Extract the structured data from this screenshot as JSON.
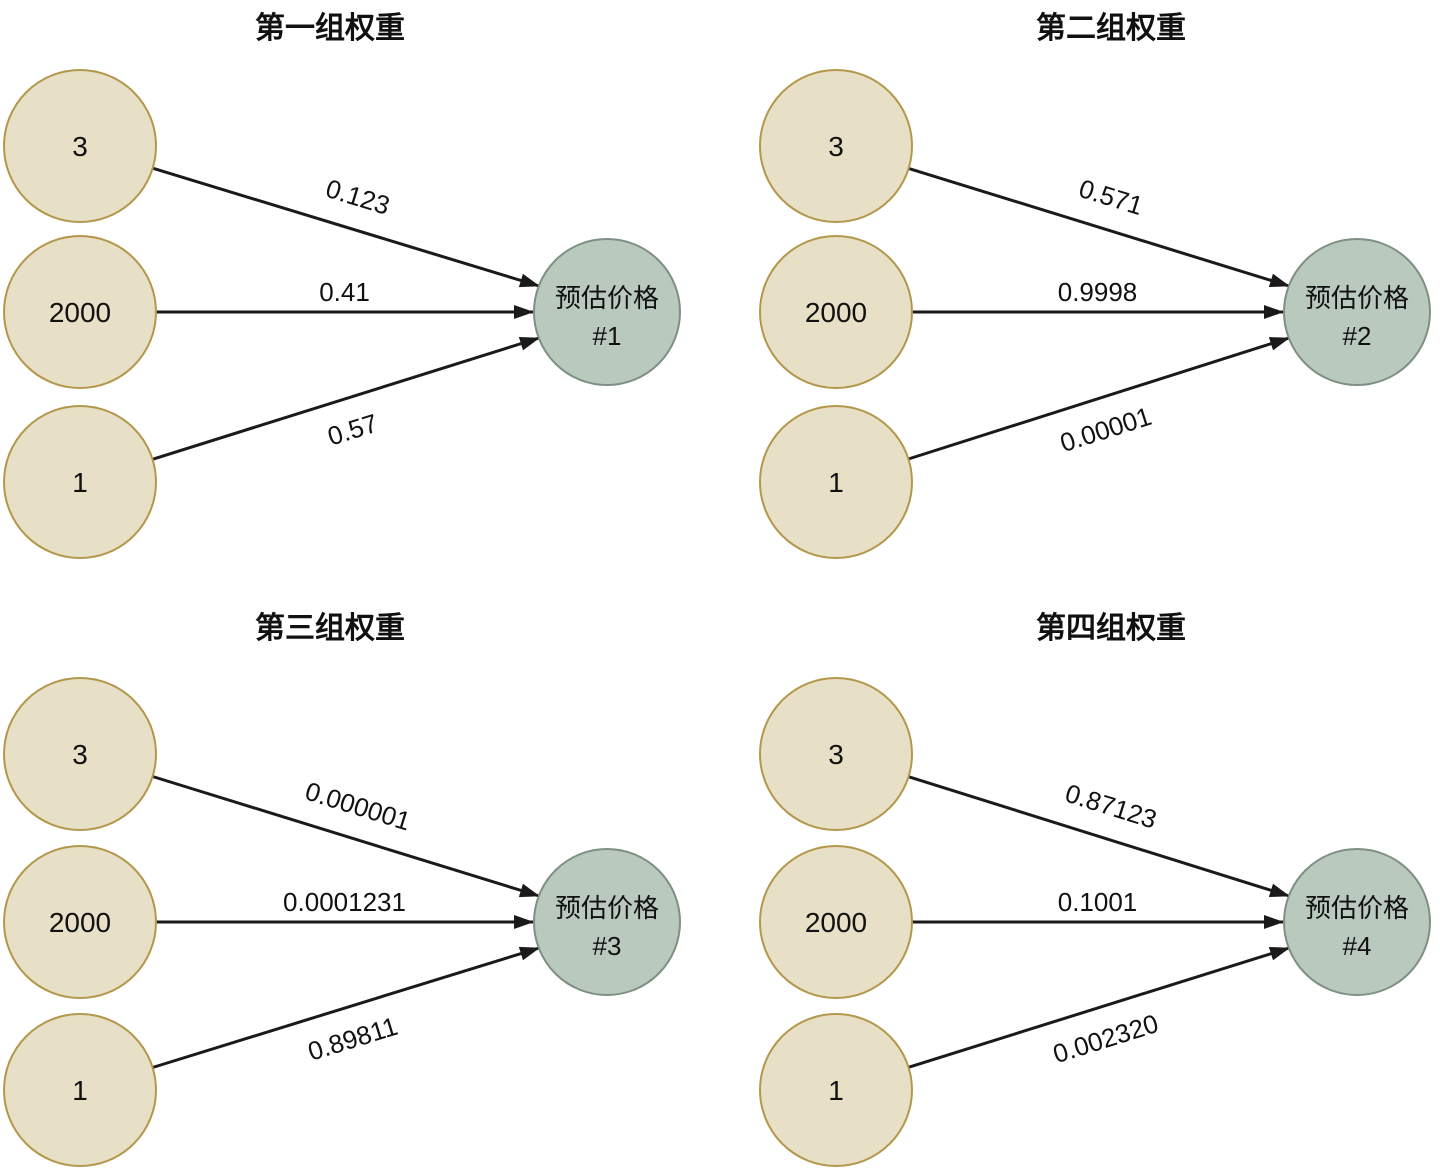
{
  "page_background": "#ffffff",
  "colors": {
    "input_node_fill": "#e7dfc6",
    "input_node_border": "#b3984c",
    "output_node_fill": "#b9c9be",
    "output_node_border": "#7e8f84",
    "arrow": "#1a1a1a",
    "text": "#111111"
  },
  "diagrams": [
    {
      "title": "第一组权重",
      "inputs": [
        "3",
        "2000",
        "1"
      ],
      "weights": [
        "0.123",
        "0.41",
        "0.57"
      ],
      "output": {
        "line1": "预估价格",
        "line2": "#1"
      }
    },
    {
      "title": "第二组权重",
      "inputs": [
        "3",
        "2000",
        "1"
      ],
      "weights": [
        "0.571",
        "0.9998",
        "0.00001"
      ],
      "output": {
        "line1": "预估价格",
        "line2": "#2"
      }
    },
    {
      "title": "第三组权重",
      "inputs": [
        "3",
        "2000",
        "1"
      ],
      "weights": [
        "0.000001",
        "0.0001231",
        "0.89811"
      ],
      "output": {
        "line1": "预估价格",
        "line2": "#3"
      }
    },
    {
      "title": "第四组权重",
      "inputs": [
        "3",
        "2000",
        "1"
      ],
      "weights": [
        "0.87123",
        "0.1001",
        "0.002320"
      ],
      "output": {
        "line1": "预估价格",
        "line2": "#4"
      }
    }
  ]
}
